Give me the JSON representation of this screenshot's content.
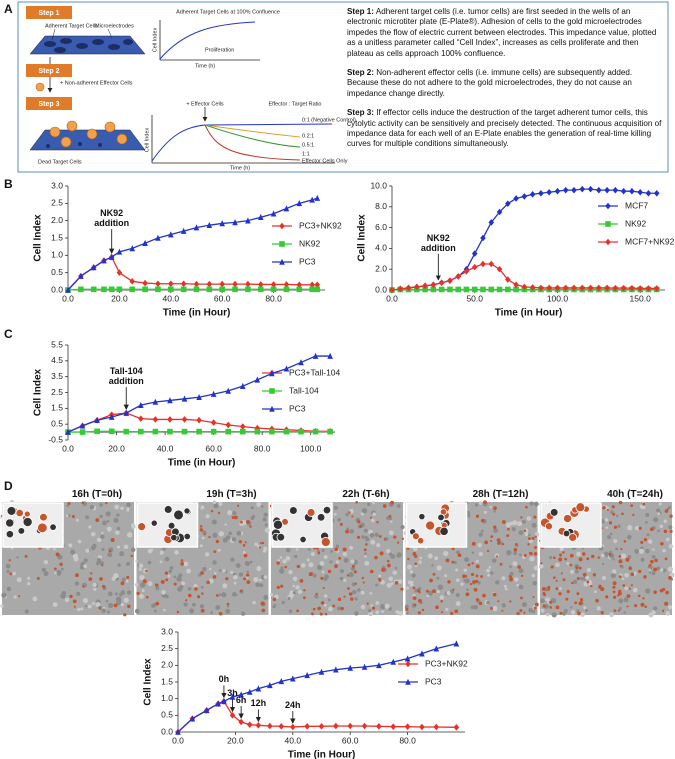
{
  "panel_labels": [
    "A",
    "B",
    "C",
    "D"
  ],
  "panel_a": {
    "steps": [
      "Step 1",
      "Step 2",
      "Step 3"
    ],
    "step1": {
      "cells": "Adherent Target Cells",
      "electrodes": "Microelectrodes",
      "plot_title": "Adherent Target Cells at 100% Confluence",
      "ylabel": "Cell Index",
      "curve": "Proliferation",
      "xlabel": "Time (h)"
    },
    "step2": {
      "label": "+ Non-adherent Effector Cells"
    },
    "step3": {
      "dead": "Dead Target Cells",
      "effector": "+ Effector Cells",
      "ratio": "Effector : Target Ratio",
      "ylabel": "Cell Index",
      "xlabel": "Time (h)",
      "curves": [
        "0:1 (Negative Control)",
        "0.2:1",
        "0.5:1",
        "1:1",
        "Effector Cells Only"
      ]
    },
    "paragraphs": [
      {
        "label": "Step 1:",
        "text": "Adherent target cells (i.e. tumor cells) are first seeded in the wells of an electronic microtiter plate (E-Plate®).  Adhesion of cells to the gold microelectrodes impedes the flow of electric current between electrodes.  This impedance value, plotted as a unitless parameter called “Cell Index”, increases as cells proliferate and then plateau as cells approach 100% confluence."
      },
      {
        "label": "Step 2:",
        "text": "Non-adherent effector cells (i.e. immune cells) are subsequently added.  Because these do not adhere to the gold microelectrodes, they do not cause an impedance change directly."
      },
      {
        "label": "Step 3:",
        "text": "If effector cells induce the destruction of the target adherent tumor cells, this cytolytic activity can be sensitively and precisely detected.  The continuous acquisition of impedance data for each well of an E-Plate enables the generation of real-time killing curves for multiple conditions simultaneously."
      }
    ]
  },
  "panel_d": {
    "captions": [
      "16h (T=0h)",
      "19h (T=3h)",
      "22h (T-6h)",
      "28h (T=12h)",
      "40h (T=24h)"
    ]
  },
  "chart_data": [
    {
      "type": "line",
      "xlabel": "Time (in Hour)",
      "ylabel": "Cell Index",
      "legend": "right",
      "x": [
        0,
        5,
        10,
        14,
        17,
        20,
        25,
        30,
        35,
        40,
        45,
        50,
        55,
        60,
        65,
        70,
        75,
        80,
        85,
        90,
        95,
        97
      ],
      "series": [
        {
          "name": "PC3+NK92",
          "color": "#e8312a",
          "marker": "diamond",
          "values": [
            0,
            0.4,
            0.65,
            0.85,
            0.95,
            0.5,
            0.25,
            0.2,
            0.18,
            0.18,
            0.18,
            0.17,
            0.17,
            0.17,
            0.17,
            0.17,
            0.16,
            0.16,
            0.16,
            0.15,
            0.15,
            0.15
          ]
        },
        {
          "name": "NK92",
          "color": "#33cc33",
          "marker": "square",
          "values": [
            0,
            0.02,
            0.02,
            0.02,
            0.02,
            0.02,
            0.02,
            0.02,
            0.02,
            0.02,
            0.02,
            0.02,
            0.02,
            0.02,
            0.02,
            0.02,
            0.02,
            0.02,
            0.02,
            0.02,
            0.02,
            0.02
          ]
        },
        {
          "name": "PC3",
          "color": "#2233cc",
          "marker": "triangle",
          "values": [
            0,
            0.4,
            0.65,
            0.85,
            0.95,
            1.1,
            1.2,
            1.35,
            1.5,
            1.6,
            1.7,
            1.8,
            1.87,
            1.92,
            1.95,
            2.0,
            2.1,
            2.2,
            2.35,
            2.5,
            2.6,
            2.65
          ]
        }
      ],
      "xlim": [
        0,
        100
      ],
      "ylim": [
        0,
        3
      ],
      "xticks": [
        {
          "value": 0,
          "label": "0.0"
        },
        {
          "value": 20,
          "label": "20.0"
        },
        {
          "value": 40,
          "label": "40.0"
        },
        {
          "value": 60,
          "label": "60.0"
        },
        {
          "value": 80,
          "label": "80.0"
        }
      ],
      "yticks": [
        {
          "value": 0,
          "label": "0.0"
        },
        {
          "value": 0.5,
          "label": "0.5"
        },
        {
          "value": 1,
          "label": "1.0"
        },
        {
          "value": 1.5,
          "label": "1.5"
        },
        {
          "value": 2,
          "label": "2.0"
        },
        {
          "value": 2.5,
          "label": "2.5"
        },
        {
          "value": 3,
          "label": "3.0"
        }
      ],
      "annotations": [
        {
          "text": "NK92 addition",
          "x": 17,
          "y": 0.95
        }
      ]
    },
    {
      "type": "line",
      "xlabel": "Time (in Hour)",
      "ylabel": "Cell Index",
      "legend": "right",
      "x": [
        0,
        5,
        10,
        15,
        20,
        25,
        30,
        35,
        40,
        45,
        50,
        55,
        60,
        65,
        70,
        75,
        80,
        85,
        90,
        95,
        100,
        105,
        110,
        115,
        120,
        125,
        130,
        135,
        140,
        145,
        150,
        155,
        160
      ],
      "series": [
        {
          "name": "MCF7",
          "color": "#2233cc",
          "marker": "diamond",
          "values": [
            0,
            0.1,
            0.2,
            0.3,
            0.4,
            0.5,
            0.7,
            0.9,
            1.3,
            2.0,
            3.5,
            5.0,
            6.5,
            7.5,
            8.3,
            8.8,
            9.0,
            9.2,
            9.3,
            9.4,
            9.5,
            9.6,
            9.6,
            9.7,
            9.7,
            9.6,
            9.6,
            9.6,
            9.5,
            9.5,
            9.4,
            9.3,
            9.3
          ]
        },
        {
          "name": "NK92",
          "color": "#33cc33",
          "marker": "square",
          "values": [
            0,
            0.05,
            0.05,
            0.05,
            0.05,
            0.05,
            0.05,
            0.05,
            0.05,
            0.05,
            0.05,
            0.05,
            0.05,
            0.05,
            0.05,
            0.05,
            0.05,
            0.05,
            0.05,
            0.05,
            0.05,
            0.05,
            0.05,
            0.05,
            0.05,
            0.05,
            0.05,
            0.05,
            0.05,
            0.05,
            0.05,
            0.05,
            0.05
          ]
        },
        {
          "name": "MCF7+NK92",
          "color": "#e8312a",
          "marker": "diamond",
          "values": [
            0,
            0.1,
            0.2,
            0.3,
            0.4,
            0.5,
            0.7,
            0.9,
            1.3,
            1.8,
            2.2,
            2.5,
            2.5,
            2.0,
            1.0,
            0.5,
            0.3,
            0.25,
            0.2,
            0.2,
            0.2,
            0.2,
            0.2,
            0.2,
            0.2,
            0.2,
            0.2,
            0.18,
            0.18,
            0.18,
            0.15,
            0.15,
            0.15
          ]
        }
      ],
      "xlim": [
        0,
        165
      ],
      "ylim": [
        0,
        10
      ],
      "xticks": [
        {
          "value": 0,
          "label": "0.0"
        },
        {
          "value": 50,
          "label": "50.0"
        },
        {
          "value": 100,
          "label": "100.0"
        },
        {
          "value": 150,
          "label": "150.0"
        }
      ],
      "yticks": [
        {
          "value": 0,
          "label": "0.0"
        },
        {
          "value": 2,
          "label": "2.0"
        },
        {
          "value": 4,
          "label": "4.0"
        },
        {
          "value": 6,
          "label": "6.0"
        },
        {
          "value": 8,
          "label": "8.0"
        },
        {
          "value": 10,
          "label": "10.0"
        }
      ],
      "annotations": [
        {
          "text": "NK92 addition",
          "x": 28,
          "y": 0.6
        }
      ]
    },
    {
      "type": "line",
      "xlabel": "Time (in Hour)",
      "ylabel": "Cell Index",
      "legend": "right",
      "x": [
        0,
        6,
        12,
        18,
        24,
        30,
        36,
        42,
        48,
        54,
        60,
        66,
        72,
        78,
        84,
        90,
        96,
        102,
        108
      ],
      "series": [
        {
          "name": "PC3+Tall-104",
          "color": "#e8312a",
          "marker": "diamond",
          "values": [
            0,
            0.4,
            0.75,
            1.1,
            1.2,
            0.85,
            0.8,
            0.8,
            0.8,
            0.75,
            0.6,
            0.45,
            0.35,
            0.25,
            0.2,
            0.15,
            0.1,
            0.05,
            0.05
          ]
        },
        {
          "name": "Tall-104",
          "color": "#33cc33",
          "marker": "square",
          "values": [
            0,
            0,
            0.05,
            0.05,
            0.03,
            0.03,
            0.03,
            0.03,
            0.03,
            0.03,
            0.03,
            0.03,
            0.03,
            0.03,
            0.03,
            0.03,
            0.03,
            0.03,
            0.03
          ]
        },
        {
          "name": "PC3",
          "color": "#2233cc",
          "marker": "triangle",
          "values": [
            0,
            0.4,
            0.75,
            0.95,
            1.2,
            1.7,
            1.9,
            2.0,
            2.1,
            2.2,
            2.4,
            2.6,
            2.9,
            3.3,
            3.7,
            4.0,
            4.4,
            4.8,
            4.8
          ]
        }
      ],
      "xlim": [
        0,
        110
      ],
      "ylim": [
        -0.5,
        5.5
      ],
      "xticks": [
        {
          "value": 0,
          "label": "0.0"
        },
        {
          "value": 20,
          "label": "20.0"
        },
        {
          "value": 40,
          "label": "40.0"
        },
        {
          "value": 60,
          "label": "60.0"
        },
        {
          "value": 80,
          "label": "80.0"
        },
        {
          "value": 100,
          "label": "100.0"
        }
      ],
      "yticks": [
        -0.5,
        0.5,
        1.5,
        2.5,
        3.5,
        4.5,
        5.5
      ],
      "annotations": [
        {
          "text": "Tall-104 addition",
          "x": 24,
          "y": 1.2
        }
      ]
    },
    {
      "type": "line",
      "xlabel": "Time (in Hour)",
      "ylabel": "Cell Index",
      "legend": "right",
      "x": [
        0,
        5,
        10,
        14,
        16,
        19,
        22,
        25,
        28,
        32,
        36,
        40,
        45,
        50,
        55,
        60,
        65,
        70,
        75,
        80,
        85,
        90,
        97
      ],
      "series": [
        {
          "name": "PC3+NK92",
          "color": "#e8312a",
          "marker": "diamond",
          "values": [
            0,
            0.4,
            0.65,
            0.85,
            0.92,
            0.5,
            0.3,
            0.22,
            0.2,
            0.18,
            0.17,
            0.15,
            0.17,
            0.17,
            0.18,
            0.18,
            0.18,
            0.17,
            0.16,
            0.16,
            0.15,
            0.15,
            0.14
          ]
        },
        {
          "name": "PC3",
          "color": "#2233cc",
          "marker": "triangle",
          "values": [
            0,
            0.4,
            0.65,
            0.85,
            0.92,
            1.05,
            1.12,
            1.2,
            1.3,
            1.4,
            1.52,
            1.6,
            1.7,
            1.8,
            1.87,
            1.92,
            1.95,
            2.0,
            2.1,
            2.2,
            2.35,
            2.5,
            2.65
          ]
        }
      ],
      "xlim": [
        0,
        100
      ],
      "ylim": [
        0,
        3
      ],
      "xticks": [
        {
          "value": 0,
          "label": "0.0"
        },
        {
          "value": 20,
          "label": "20.0"
        },
        {
          "value": 40,
          "label": "40.0"
        },
        {
          "value": 60,
          "label": "60.0"
        },
        {
          "value": 80,
          "label": "80.0"
        }
      ],
      "yticks": [
        {
          "value": 0,
          "label": "0.0"
        },
        {
          "value": 0.5,
          "label": "0.5"
        },
        {
          "value": 1,
          "label": "1.0"
        },
        {
          "value": 1.5,
          "label": "1.5"
        },
        {
          "value": 2,
          "label": "2.0"
        },
        {
          "value": 2.5,
          "label": "2.5"
        },
        {
          "value": 3,
          "label": "3.0"
        }
      ],
      "annotations": [
        {
          "text": "0h",
          "x": 16,
          "y": 0.92
        },
        {
          "text": "3h",
          "x": 19,
          "y": 0.5
        },
        {
          "text": "6h",
          "x": 22,
          "y": 0.3
        },
        {
          "text": "12h",
          "x": 28,
          "y": 0.2
        },
        {
          "text": "24h",
          "x": 40,
          "y": 0.15
        }
      ]
    }
  ]
}
